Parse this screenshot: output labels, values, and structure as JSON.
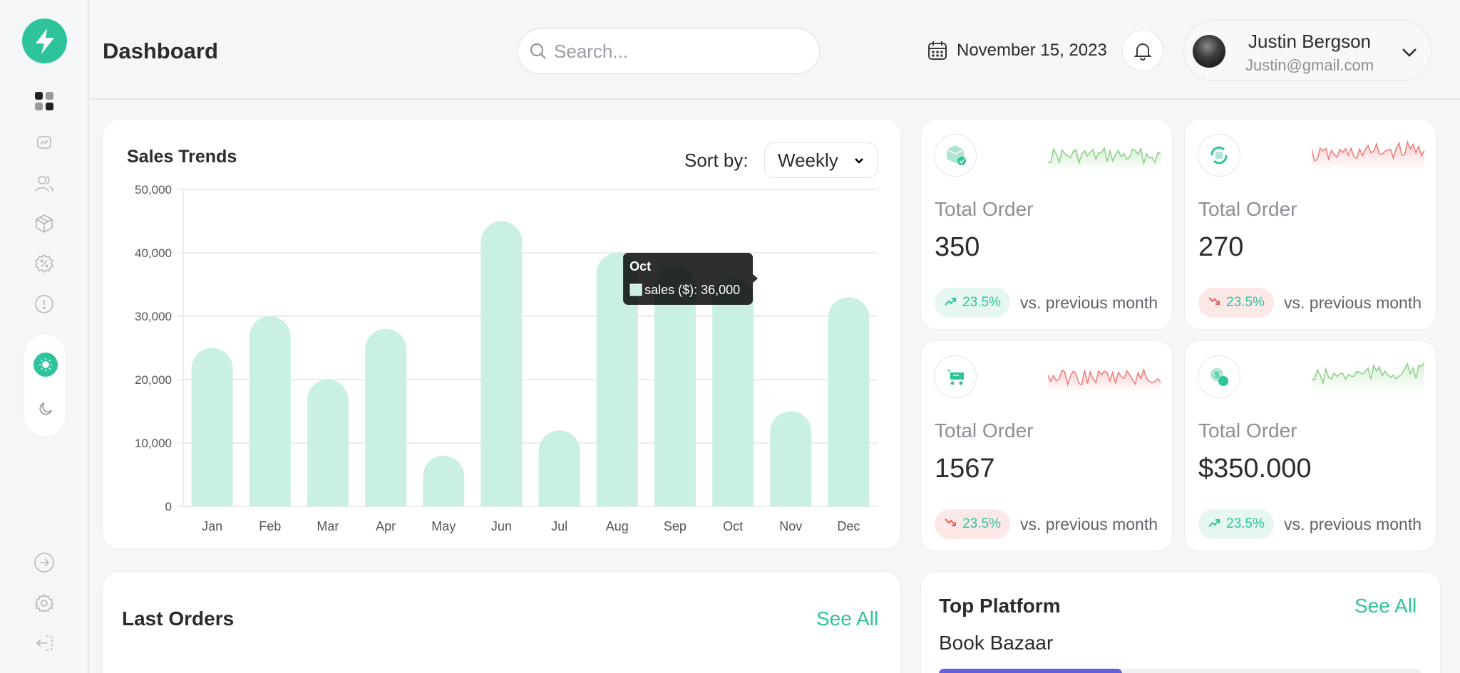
{
  "header": {
    "title": "Dashboard",
    "search_placeholder": "Search...",
    "date": "November 15, 2023"
  },
  "user": {
    "name": "Justin Bergson",
    "email": "Justin@gmail.com"
  },
  "sidebar": {
    "items": [
      "grid-icon",
      "chart-icon",
      "users-icon",
      "box-icon",
      "discount-icon",
      "info-icon"
    ],
    "theme": {
      "active": "light"
    },
    "bottom": [
      "logout-icon",
      "gear-icon",
      "back-icon"
    ]
  },
  "sales": {
    "title": "Sales Trends",
    "sort_label": "Sort by:",
    "sort_value": "Weekly",
    "tooltip": {
      "title": "Oct",
      "label": "sales ($): 36,000"
    }
  },
  "chart_data": {
    "type": "bar",
    "categories": [
      "Jan",
      "Feb",
      "Mar",
      "Apr",
      "May",
      "Jun",
      "Jul",
      "Aug",
      "Sep",
      "Oct",
      "Nov",
      "Dec"
    ],
    "series": [
      {
        "name": "sales ($)",
        "values": [
          25000,
          30000,
          20000,
          28000,
          8000,
          45000,
          12000,
          40000,
          38000,
          36000,
          15000,
          33000
        ]
      }
    ],
    "yticks": [
      "0",
      "10,000",
      "20,000",
      "30,000",
      "40,000",
      "50,000"
    ],
    "ylim": [
      0,
      50000
    ],
    "grid": true,
    "color": "#c9f0e3"
  },
  "stats": [
    {
      "label": "Total Order",
      "value": "350",
      "change": "23.5%",
      "trend": "up",
      "vs": "vs. previous month",
      "spark_color": "#8fd18a"
    },
    {
      "label": "Total Order",
      "value": "270",
      "change": "23.5%",
      "trend": "down",
      "vs": "vs. previous month",
      "spark_color": "#f07f7f"
    },
    {
      "label": "Total Order",
      "value": "1567",
      "change": "23.5%",
      "trend": "down",
      "vs": "vs. previous month",
      "spark_color": "#f07f7f"
    },
    {
      "label": "Total Order",
      "value": "$350.000",
      "change": "23.5%",
      "trend": "up",
      "vs": "vs. previous month",
      "spark_color": "#8fd18a"
    }
  ],
  "last_orders": {
    "title": "Last Orders",
    "see_all": "See All"
  },
  "top_platform": {
    "title": "Top Platform",
    "see_all": "See All",
    "items": [
      {
        "name": "Book Bazaar",
        "progress": 0.38
      }
    ]
  },
  "colors": {
    "accent": "#2fc39c",
    "red": "#ef5b5b",
    "purple": "#6160dc"
  }
}
